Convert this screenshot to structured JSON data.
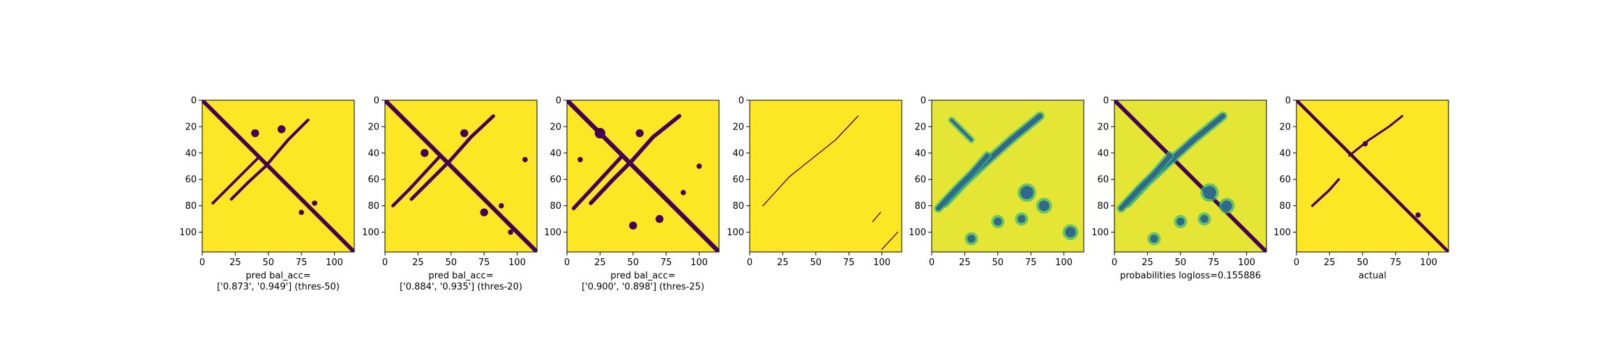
{
  "colors": {
    "viridis_low": "#440154",
    "viridis_mid_blue": "#31688e",
    "viridis_green": "#35b779",
    "viridis_high": "#fde725",
    "axis": "#000000",
    "background": "#ffffff"
  },
  "chart_data": [
    {
      "type": "heatmap",
      "xlabel": "pred bal_acc=\n['0.873', '0.949'] (thres-50)",
      "xlabel_lines": [
        "pred bal_acc=",
        "['0.873', '0.949'] (thres-50)"
      ],
      "matrix_size": 115,
      "xlim": [
        0,
        115
      ],
      "ylim": [
        115,
        0
      ],
      "xticks": [
        0,
        25,
        50,
        75,
        100
      ],
      "yticks": [
        0,
        20,
        40,
        60,
        80,
        100
      ],
      "mode": "binary",
      "diagonal_width": 3.0,
      "features": [
        {
          "type": "curve",
          "points": [
            [
              22,
              75
            ],
            [
              35,
              62
            ],
            [
              48,
              50
            ],
            [
              65,
              30
            ],
            [
              80,
              15
            ]
          ],
          "width": 2.2
        },
        {
          "type": "curve",
          "points": [
            [
              8,
              78
            ],
            [
              18,
              68
            ],
            [
              30,
              56
            ],
            [
              42,
              44
            ]
          ],
          "width": 2.0
        },
        {
          "type": "blob",
          "cx": 40,
          "cy": 25,
          "r": 3
        },
        {
          "type": "blob",
          "cx": 60,
          "cy": 22,
          "r": 3
        },
        {
          "type": "blob",
          "cx": 75,
          "cy": 85,
          "r": 2
        },
        {
          "type": "blob",
          "cx": 85,
          "cy": 78,
          "r": 2
        }
      ]
    },
    {
      "type": "heatmap",
      "xlabel": "pred bal_acc=\n['0.884', '0.935'] (thres-20)",
      "xlabel_lines": [
        "pred bal_acc=",
        "['0.884', '0.935'] (thres-20)"
      ],
      "matrix_size": 115,
      "xlim": [
        0,
        115
      ],
      "ylim": [
        115,
        0
      ],
      "xticks": [
        0,
        25,
        50,
        75,
        100
      ],
      "yticks": [
        0,
        20,
        40,
        60,
        80,
        100
      ],
      "mode": "binary",
      "diagonal_width": 3.2,
      "features": [
        {
          "type": "curve",
          "points": [
            [
              20,
              75
            ],
            [
              35,
              60
            ],
            [
              50,
              45
            ],
            [
              65,
              28
            ],
            [
              82,
              12
            ]
          ],
          "width": 2.6
        },
        {
          "type": "curve",
          "points": [
            [
              6,
              80
            ],
            [
              18,
              68
            ],
            [
              30,
              55
            ],
            [
              42,
              42
            ]
          ],
          "width": 2.4
        },
        {
          "type": "blob",
          "cx": 30,
          "cy": 40,
          "r": 3
        },
        {
          "type": "blob",
          "cx": 60,
          "cy": 25,
          "r": 3
        },
        {
          "type": "blob",
          "cx": 75,
          "cy": 85,
          "r": 3
        },
        {
          "type": "blob",
          "cx": 88,
          "cy": 80,
          "r": 2
        },
        {
          "type": "blob",
          "cx": 106,
          "cy": 45,
          "r": 2
        },
        {
          "type": "blob",
          "cx": 95,
          "cy": 100,
          "r": 2
        }
      ]
    },
    {
      "type": "heatmap",
      "xlabel": "pred bal_acc=\n['0.900', '0.898'] (thres-25)",
      "xlabel_lines": [
        "pred bal_acc=",
        "['0.900', '0.898'] (thres-25)"
      ],
      "matrix_size": 115,
      "xlim": [
        0,
        115
      ],
      "ylim": [
        115,
        0
      ],
      "xticks": [
        0,
        25,
        50,
        75,
        100
      ],
      "yticks": [
        0,
        20,
        40,
        60,
        80,
        100
      ],
      "mode": "binary",
      "diagonal_width": 3.4,
      "features": [
        {
          "type": "curve",
          "points": [
            [
              18,
              78
            ],
            [
              35,
              60
            ],
            [
              50,
              45
            ],
            [
              65,
              28
            ],
            [
              85,
              12
            ]
          ],
          "width": 3.0
        },
        {
          "type": "curve",
          "points": [
            [
              5,
              82
            ],
            [
              18,
              68
            ],
            [
              30,
              55
            ],
            [
              42,
              42
            ]
          ],
          "width": 2.8
        },
        {
          "type": "blob",
          "cx": 25,
          "cy": 25,
          "r": 4
        },
        {
          "type": "blob",
          "cx": 55,
          "cy": 25,
          "r": 3
        },
        {
          "type": "blob",
          "cx": 50,
          "cy": 95,
          "r": 3
        },
        {
          "type": "blob",
          "cx": 70,
          "cy": 90,
          "r": 3
        },
        {
          "type": "blob",
          "cx": 100,
          "cy": 50,
          "r": 2
        },
        {
          "type": "blob",
          "cx": 88,
          "cy": 70,
          "r": 2
        },
        {
          "type": "blob",
          "cx": 10,
          "cy": 45,
          "r": 2
        }
      ]
    },
    {
      "type": "heatmap",
      "xlabel": "",
      "xlabel_lines": [],
      "matrix_size": 115,
      "xlim": [
        0,
        115
      ],
      "ylim": [
        115,
        0
      ],
      "xticks": [
        0,
        25,
        50,
        75,
        100
      ],
      "yticks": [
        0,
        20,
        40,
        60,
        80,
        100
      ],
      "mode": "binary",
      "diagonal_width": 0,
      "features": [
        {
          "type": "curve",
          "points": [
            [
              10,
              80
            ],
            [
              30,
              58
            ],
            [
              50,
              42
            ],
            [
              65,
              30
            ],
            [
              82,
              12
            ]
          ],
          "width": 0.7
        },
        {
          "type": "curve",
          "points": [
            [
              93,
              92
            ],
            [
              99,
              85
            ]
          ],
          "width": 0.7
        },
        {
          "type": "curve",
          "points": [
            [
              100,
              113
            ],
            [
              112,
              100
            ]
          ],
          "width": 0.7
        }
      ]
    },
    {
      "type": "heatmap",
      "xlabel": "",
      "xlabel_lines": [],
      "matrix_size": 115,
      "xlim": [
        0,
        115
      ],
      "ylim": [
        115,
        0
      ],
      "xticks": [
        0,
        25,
        50,
        75,
        100
      ],
      "yticks": [
        0,
        20,
        40,
        60,
        80,
        100
      ],
      "mode": "prob",
      "diagonal_width": 0,
      "features": [
        {
          "type": "curve",
          "points": [
            [
              10,
              78
            ],
            [
              25,
              62
            ],
            [
              40,
              48
            ],
            [
              60,
              30
            ],
            [
              82,
              12
            ]
          ],
          "width": 4.0
        },
        {
          "type": "curve",
          "points": [
            [
              5,
              82
            ],
            [
              18,
              68
            ],
            [
              30,
              56
            ],
            [
              42,
              42
            ]
          ],
          "width": 3.5
        },
        {
          "type": "curve",
          "points": [
            [
              15,
              15
            ],
            [
              30,
              30
            ]
          ],
          "width": 2.0
        },
        {
          "type": "blob",
          "cx": 72,
          "cy": 70,
          "r": 5
        },
        {
          "type": "blob",
          "cx": 85,
          "cy": 80,
          "r": 4
        },
        {
          "type": "blob",
          "cx": 68,
          "cy": 90,
          "r": 3
        },
        {
          "type": "blob",
          "cx": 105,
          "cy": 100,
          "r": 4
        },
        {
          "type": "blob",
          "cx": 50,
          "cy": 92,
          "r": 3
        },
        {
          "type": "blob",
          "cx": 30,
          "cy": 105,
          "r": 3
        }
      ]
    },
    {
      "type": "heatmap",
      "xlabel": "probabilities logloss=0.155886",
      "xlabel_lines": [
        "probabilities logloss=0.155886"
      ],
      "matrix_size": 115,
      "xlim": [
        0,
        115
      ],
      "ylim": [
        115,
        0
      ],
      "xticks": [
        0,
        25,
        50,
        75,
        100
      ],
      "yticks": [
        0,
        20,
        40,
        60,
        80,
        100
      ],
      "mode": "prob",
      "diagonal_width": 3.0,
      "features": [
        {
          "type": "curve",
          "points": [
            [
              10,
              78
            ],
            [
              25,
              62
            ],
            [
              40,
              48
            ],
            [
              60,
              30
            ],
            [
              82,
              12
            ]
          ],
          "width": 4.0
        },
        {
          "type": "curve",
          "points": [
            [
              5,
              82
            ],
            [
              18,
              68
            ],
            [
              30,
              56
            ],
            [
              42,
              42
            ]
          ],
          "width": 3.5
        },
        {
          "type": "blob",
          "cx": 72,
          "cy": 70,
          "r": 5
        },
        {
          "type": "blob",
          "cx": 85,
          "cy": 80,
          "r": 4
        },
        {
          "type": "blob",
          "cx": 68,
          "cy": 90,
          "r": 3
        },
        {
          "type": "blob",
          "cx": 50,
          "cy": 92,
          "r": 3
        },
        {
          "type": "blob",
          "cx": 30,
          "cy": 105,
          "r": 3
        }
      ]
    },
    {
      "type": "heatmap",
      "xlabel": "actual",
      "xlabel_lines": [
        "actual"
      ],
      "matrix_size": 115,
      "xlim": [
        0,
        115
      ],
      "ylim": [
        115,
        0
      ],
      "xticks": [
        0,
        25,
        50,
        75,
        100
      ],
      "yticks": [
        0,
        20,
        40,
        60,
        80,
        100
      ],
      "mode": "binary",
      "diagonal_width": 2.4,
      "features": [
        {
          "type": "curve",
          "points": [
            [
              12,
              80
            ],
            [
              25,
              68
            ],
            [
              32,
              60
            ]
          ],
          "width": 1.8
        },
        {
          "type": "curve",
          "points": [
            [
              40,
              42
            ],
            [
              55,
              30
            ],
            [
              70,
              20
            ],
            [
              80,
              12
            ]
          ],
          "width": 1.6
        },
        {
          "type": "blob",
          "cx": 52,
          "cy": 33,
          "r": 2
        },
        {
          "type": "blob",
          "cx": 92,
          "cy": 87,
          "r": 2
        }
      ]
    }
  ]
}
